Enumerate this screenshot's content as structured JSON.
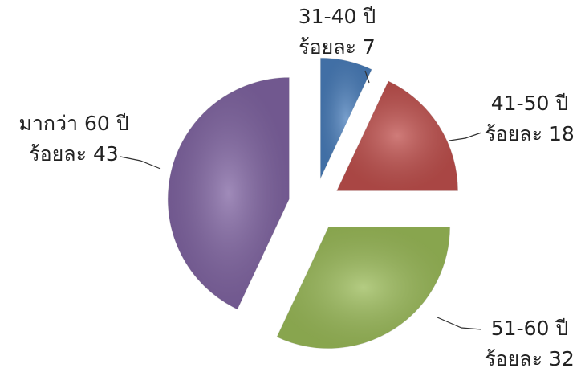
{
  "chart_data": {
    "type": "pie",
    "categories": [
      "31-40 ปี",
      "41-50 ปี",
      "51-60 ปี",
      "มากว่า 60 ปี"
    ],
    "values": [
      7,
      18,
      32,
      43
    ],
    "value_labels": [
      "ร้อยละ 7",
      "ร้อยละ 18",
      "ร้อยละ 32",
      "ร้อยละ 43"
    ],
    "colors": [
      "#4a7ebb",
      "#c0504d",
      "#9bbb59",
      "#8064a2"
    ]
  }
}
